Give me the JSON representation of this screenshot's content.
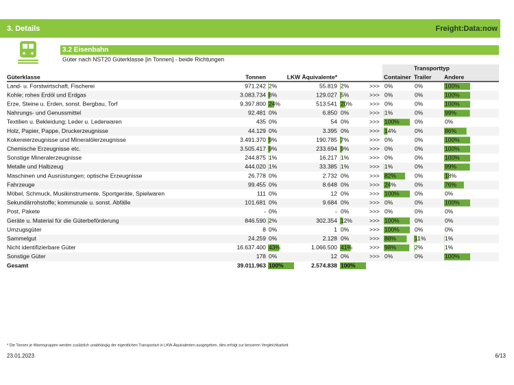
{
  "header": {
    "section": "3. Details",
    "logo": "Freight:Data:now"
  },
  "section": {
    "title": "3.2 Eisenbahn",
    "subtitle": "Güter nach NST20 Güterklasse [in Tonnen] - beide Richtungen"
  },
  "table": {
    "columns": {
      "name": "Güterklasse",
      "tonnen": "Tonnen",
      "lkw": "LKW Äquivalente*",
      "group": "Transporttyp",
      "container": "Container",
      "trailer": "Trailer",
      "andere": "Andere"
    },
    "arrow": ">>>",
    "rows": [
      {
        "name": "Land- u. Forstwirtschaft, Fischerei",
        "tonnen": "971.242",
        "tonnen_share": {
          "value": 2,
          "label": "2%"
        },
        "lkw": "55.819",
        "lkw_share": {
          "value": 2,
          "label": "2%"
        },
        "container": {
          "value": 0,
          "label": "0%"
        },
        "trailer": {
          "value": 0,
          "label": "0%"
        },
        "andere": {
          "value": 100,
          "label": "100%"
        }
      },
      {
        "name": "Kohle; rohes Erdöl und Erdgas",
        "tonnen": "3.083.734",
        "tonnen_share": {
          "value": 8,
          "label": "8%"
        },
        "lkw": "129.027",
        "lkw_share": {
          "value": 5,
          "label": "5%"
        },
        "container": {
          "value": 0,
          "label": "0%"
        },
        "trailer": {
          "value": 0,
          "label": "0%"
        },
        "andere": {
          "value": 100,
          "label": "100%"
        }
      },
      {
        "name": "Erze, Steine u. Erden, sonst. Bergbau, Torf",
        "tonnen": "9.397.800",
        "tonnen_share": {
          "value": 24,
          "label": "24%"
        },
        "lkw": "513.541",
        "lkw_share": {
          "value": 20,
          "label": "20%"
        },
        "container": {
          "value": 0,
          "label": "0%"
        },
        "trailer": {
          "value": 0,
          "label": "0%"
        },
        "andere": {
          "value": 100,
          "label": "100%"
        }
      },
      {
        "name": "Nahrungs- und Genussmittel",
        "tonnen": "92.481",
        "tonnen_share": {
          "value": 0,
          "label": "0%"
        },
        "lkw": "6.850",
        "lkw_share": {
          "value": 0,
          "label": "0%"
        },
        "container": {
          "value": 1,
          "label": "1%"
        },
        "trailer": {
          "value": 0,
          "label": "0%"
        },
        "andere": {
          "value": 99,
          "label": "99%"
        }
      },
      {
        "name": "Textilien u. Bekleidung; Leder u. Lederwaren",
        "tonnen": "435",
        "tonnen_share": {
          "value": 0,
          "label": "0%"
        },
        "lkw": "54",
        "lkw_share": {
          "value": 0,
          "label": "0%"
        },
        "container": {
          "value": 100,
          "label": "100%"
        },
        "trailer": {
          "value": 0,
          "label": "0%"
        },
        "andere": {
          "value": 0,
          "label": "0%"
        }
      },
      {
        "name": "Holz, Papier, Pappe, Druckerzeugnisse",
        "tonnen": "44.129",
        "tonnen_share": {
          "value": 0,
          "label": "0%"
        },
        "lkw": "3.395",
        "lkw_share": {
          "value": 0,
          "label": "0%"
        },
        "container": {
          "value": 14,
          "label": "14%"
        },
        "trailer": {
          "value": 0,
          "label": "0%"
        },
        "andere": {
          "value": 86,
          "label": "86%"
        }
      },
      {
        "name": "Kokereierzeugnisse und Mineralölerzeugnisse",
        "tonnen": "3.491.370",
        "tonnen_share": {
          "value": 9,
          "label": "9%"
        },
        "lkw": "190.785",
        "lkw_share": {
          "value": 7,
          "label": "7%"
        },
        "container": {
          "value": 0,
          "label": "0%"
        },
        "trailer": {
          "value": 0,
          "label": "0%"
        },
        "andere": {
          "value": 100,
          "label": "100%"
        }
      },
      {
        "name": "Chemische Erzeugnisse etc.",
        "tonnen": "3.505.417",
        "tonnen_share": {
          "value": 9,
          "label": "9%"
        },
        "lkw": "233.694",
        "lkw_share": {
          "value": 9,
          "label": "9%"
        },
        "container": {
          "value": 0,
          "label": "0%"
        },
        "trailer": {
          "value": 0,
          "label": "0%"
        },
        "andere": {
          "value": 100,
          "label": "100%"
        }
      },
      {
        "name": "Sonstige Mineralerzeugnisse",
        "tonnen": "244.875",
        "tonnen_share": {
          "value": 1,
          "label": "1%"
        },
        "lkw": "16.217",
        "lkw_share": {
          "value": 1,
          "label": "1%"
        },
        "container": {
          "value": 0,
          "label": "0%"
        },
        "trailer": {
          "value": 0,
          "label": "0%"
        },
        "andere": {
          "value": 100,
          "label": "100%"
        }
      },
      {
        "name": "Metalle und Halbzeug",
        "tonnen": "444.020",
        "tonnen_share": {
          "value": 1,
          "label": "1%"
        },
        "lkw": "33.385",
        "lkw_share": {
          "value": 1,
          "label": "1%"
        },
        "container": {
          "value": 1,
          "label": "1%"
        },
        "trailer": {
          "value": 0,
          "label": "0%"
        },
        "andere": {
          "value": 99,
          "label": "99%"
        }
      },
      {
        "name": "Maschinen und Ausrüstungen; optische Erzeugnisse",
        "tonnen": "26.778",
        "tonnen_share": {
          "value": 0,
          "label": "0%"
        },
        "lkw": "2.732",
        "lkw_share": {
          "value": 0,
          "label": "0%"
        },
        "container": {
          "value": 82,
          "label": "82%"
        },
        "trailer": {
          "value": 0,
          "label": "0%"
        },
        "andere": {
          "value": 18,
          "label": "18%"
        }
      },
      {
        "name": "Fahrzeuge",
        "tonnen": "99.455",
        "tonnen_share": {
          "value": 0,
          "label": "0%"
        },
        "lkw": "8.648",
        "lkw_share": {
          "value": 0,
          "label": "0%"
        },
        "container": {
          "value": 24,
          "label": "24%"
        },
        "trailer": {
          "value": 0,
          "label": "0%"
        },
        "andere": {
          "value": 76,
          "label": "76%"
        }
      },
      {
        "name": "Möbel, Schmuck, Musikinstrumente, Sportgeräte, Spielwaren",
        "tonnen": "111",
        "tonnen_share": {
          "value": 0,
          "label": "0%"
        },
        "lkw": "12",
        "lkw_share": {
          "value": 0,
          "label": "0%"
        },
        "container": {
          "value": 100,
          "label": "100%"
        },
        "trailer": {
          "value": 0,
          "label": "0%"
        },
        "andere": {
          "value": 0,
          "label": "0%"
        }
      },
      {
        "name": "Sekundärrohstoffe; kommunale u. sonst. Abfälle",
        "tonnen": "101.681",
        "tonnen_share": {
          "value": 0,
          "label": "0%"
        },
        "lkw": "9.684",
        "lkw_share": {
          "value": 0,
          "label": "0%"
        },
        "container": {
          "value": 0,
          "label": "0%"
        },
        "trailer": {
          "value": 0,
          "label": "0%"
        },
        "andere": {
          "value": 100,
          "label": "100%"
        }
      },
      {
        "name": "Post, Pakete",
        "tonnen": "-",
        "tonnen_share": {
          "value": 0,
          "label": "0%"
        },
        "lkw": "-",
        "lkw_share": {
          "value": 0,
          "label": "0%"
        },
        "container": {
          "value": 0,
          "label": "0%"
        },
        "trailer": {
          "value": 0,
          "label": "0%"
        },
        "andere": {
          "value": 0,
          "label": "0%"
        }
      },
      {
        "name": "Geräte u. Material für die Güterbeförderung",
        "tonnen": "846.590",
        "tonnen_share": {
          "value": 2,
          "label": "2%"
        },
        "lkw": "302.354",
        "lkw_share": {
          "value": 12,
          "label": "12%"
        },
        "container": {
          "value": 100,
          "label": "100%"
        },
        "trailer": {
          "value": 0,
          "label": "0%"
        },
        "andere": {
          "value": 0,
          "label": "0%"
        }
      },
      {
        "name": "Umzugsgüter",
        "tonnen": "8",
        "tonnen_share": {
          "value": 0,
          "label": "0%"
        },
        "lkw": "1",
        "lkw_share": {
          "value": 0,
          "label": "0%"
        },
        "container": {
          "value": 100,
          "label": "100%"
        },
        "trailer": {
          "value": 0,
          "label": "0%"
        },
        "andere": {
          "value": 0,
          "label": "0%"
        }
      },
      {
        "name": "Sammelgut",
        "tonnen": "24.259",
        "tonnen_share": {
          "value": 0,
          "label": "0%"
        },
        "lkw": "2.128",
        "lkw_share": {
          "value": 0,
          "label": "0%"
        },
        "container": {
          "value": 88,
          "label": "88%"
        },
        "trailer": {
          "value": 11,
          "label": "11%"
        },
        "andere": {
          "value": 1,
          "label": "1%"
        }
      },
      {
        "name": "Nicht identifizierbare Güter",
        "tonnen": "16.637.400",
        "tonnen_share": {
          "value": 43,
          "label": "43%"
        },
        "lkw": "1.066.500",
        "lkw_share": {
          "value": 41,
          "label": "41%"
        },
        "container": {
          "value": 98,
          "label": "98%"
        },
        "trailer": {
          "value": 2,
          "label": "2%"
        },
        "andere": {
          "value": 1,
          "label": "1%"
        }
      },
      {
        "name": "Sonstige Güter",
        "tonnen": "178",
        "tonnen_share": {
          "value": 0,
          "label": "0%"
        },
        "lkw": "12",
        "lkw_share": {
          "value": 0,
          "label": "0%"
        },
        "container": {
          "value": 0,
          "label": "0%"
        },
        "trailer": {
          "value": 0,
          "label": "0%"
        },
        "andere": {
          "value": 100,
          "label": "100%"
        }
      }
    ],
    "total": {
      "name": "Gesamt",
      "tonnen": "39.011.963",
      "tonnen_share": {
        "value": 100,
        "label": "100%"
      },
      "lkw": "2.574.838",
      "lkw_share": {
        "value": 100,
        "label": "100%"
      }
    }
  },
  "footer": {
    "note": "* Die Tonnen je Warengruppen werden zusätzlich unabhängig der eigentlichen Transportart in LKW-Äquivalenten ausgegeben, dies erfolgt zur besseren Vergleichbarkeit",
    "date": "23.01.2023",
    "page": "6/13"
  }
}
